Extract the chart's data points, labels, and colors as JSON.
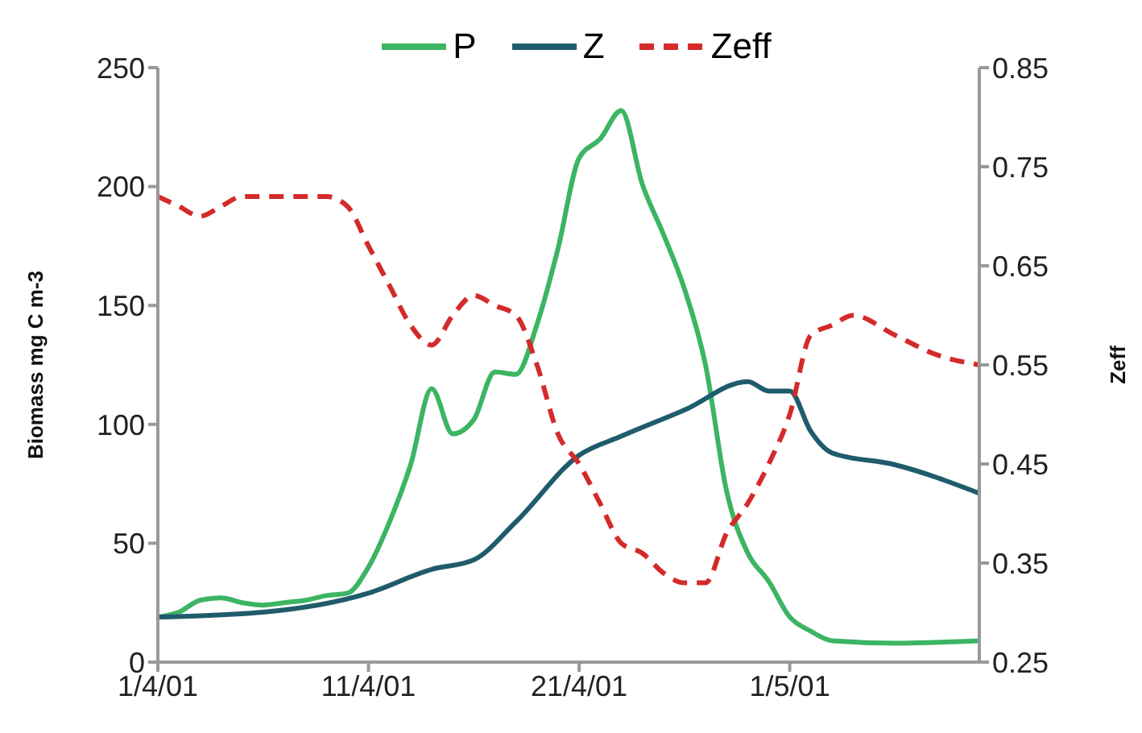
{
  "chart_data": {
    "type": "line",
    "ylabel": "Biomass mg C m-3",
    "y2label": "Zeff",
    "xlim": [
      "--04-01",
      "--05-10"
    ],
    "xticks": [
      {
        "value": "--04-01",
        "label": "1/4/01"
      },
      {
        "value": "--04-11",
        "label": "11/4/01"
      },
      {
        "value": "--04-21",
        "label": "21/4/01"
      },
      {
        "value": "--05-01",
        "label": "1/5/01"
      }
    ],
    "ylim": [
      0,
      250
    ],
    "yticks": [
      0,
      50,
      100,
      150,
      200,
      250
    ],
    "y2lim": [
      0.25,
      0.85
    ],
    "y2ticks": [
      0.25,
      0.35,
      0.45,
      0.55,
      0.65,
      0.75,
      0.85
    ],
    "legend": "top",
    "marker": "none",
    "grid": false,
    "series": [
      {
        "name": "P",
        "color": "#3cb563",
        "line_style": "solid",
        "x": [
          "--04-01",
          "--04-02",
          "--04-03",
          "--04-04",
          "--04-05",
          "--04-06",
          "--04-07",
          "--04-08",
          "--04-09",
          "--04-10",
          "--04-11",
          "--04-12",
          "--04-13",
          "--04-14",
          "--04-15",
          "--04-16",
          "--04-17",
          "--04-18",
          "--04-19",
          "--04-20",
          "--04-21",
          "--04-22",
          "--04-23",
          "--04-24",
          "--04-25",
          "--04-26",
          "--04-27",
          "--04-28",
          "--04-29",
          "--04-30",
          "--05-01",
          "--05-02",
          "--05-03",
          "--05-06",
          "--05-10"
        ],
        "values": [
          19,
          21,
          26,
          27,
          25,
          24,
          25,
          26,
          28,
          29,
          40,
          59,
          83,
          115,
          96,
          102,
          122,
          121,
          142,
          174,
          212,
          220,
          232,
          201,
          180,
          157,
          125,
          72,
          46,
          34,
          19,
          13,
          9,
          8,
          9
        ]
      },
      {
        "name": "Z",
        "color": "#1f5c6b",
        "line_style": "solid",
        "x": [
          "--04-01",
          "--04-06",
          "--04-11",
          "--04-14",
          "--04-16",
          "--04-18",
          "--04-21",
          "--04-23",
          "--04-26",
          "--04-29",
          "--04-30",
          "--05-01",
          "--05-02",
          "--05-03",
          "--05-06",
          "--05-10"
        ],
        "values": [
          19,
          21,
          29,
          39,
          43,
          59,
          87,
          95,
          106,
          118,
          114,
          114,
          97,
          88,
          83,
          71
        ]
      },
      {
        "name": "Zeff",
        "color": "#d42a2a",
        "line_style": "dashed",
        "axis": "y2",
        "x": [
          "--04-01",
          "--04-02",
          "--04-03",
          "--04-04",
          "--04-05",
          "--04-06",
          "--04-07",
          "--04-08",
          "--04-09",
          "--04-10",
          "--04-11",
          "--04-12",
          "--04-13",
          "--04-14",
          "--04-15",
          "--04-16",
          "--04-17",
          "--04-18",
          "--04-19",
          "--04-20",
          "--04-21",
          "--04-22",
          "--04-23",
          "--04-24",
          "--04-25",
          "--04-26",
          "--04-27",
          "--04-28",
          "--04-29",
          "--04-30",
          "--05-01",
          "--05-02",
          "--05-03",
          "--05-04",
          "--05-06",
          "--05-08",
          "--05-10"
        ],
        "values": [
          0.72,
          0.71,
          0.7,
          0.71,
          0.72,
          0.72,
          0.72,
          0.72,
          0.72,
          0.71,
          0.67,
          0.63,
          0.59,
          0.57,
          0.6,
          0.62,
          0.61,
          0.6,
          0.55,
          0.48,
          0.45,
          0.41,
          0.37,
          0.36,
          0.34,
          0.33,
          0.33,
          0.38,
          0.41,
          0.45,
          0.5,
          0.58,
          0.59,
          0.6,
          0.58,
          0.56,
          0.55
        ]
      }
    ]
  }
}
